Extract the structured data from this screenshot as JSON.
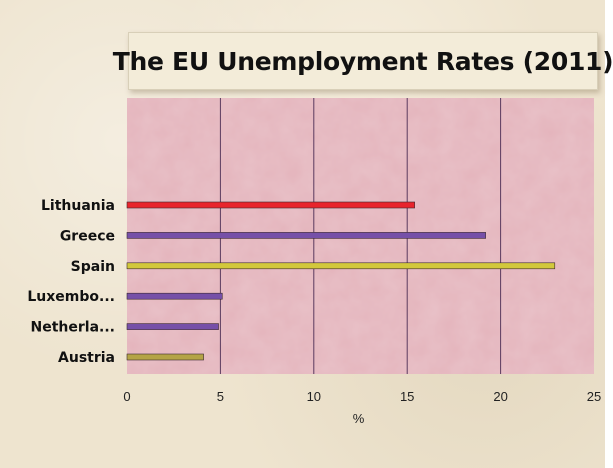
{
  "chart_data": {
    "type": "bar",
    "orientation": "horizontal",
    "title": "The EU Unemployment Rates (2011)",
    "xlabel": "%",
    "ylabel": "",
    "categories": [
      "Lithuania",
      "Greece",
      "Spain",
      "Luxembo...",
      "Netherla...",
      "Austria"
    ],
    "values": [
      15.4,
      19.2,
      22.9,
      5.1,
      4.9,
      4.1
    ],
    "bar_colors": [
      "#e8242c",
      "#7650a8",
      "#d2c83c",
      "#7650a8",
      "#7650a8",
      "#b4a446"
    ],
    "xlim": [
      0,
      25
    ],
    "xticks": [
      "0",
      "5",
      "10",
      "15",
      "20",
      "25"
    ],
    "grid": true,
    "legend": "none",
    "plot_background": "#e4b4bc"
  }
}
